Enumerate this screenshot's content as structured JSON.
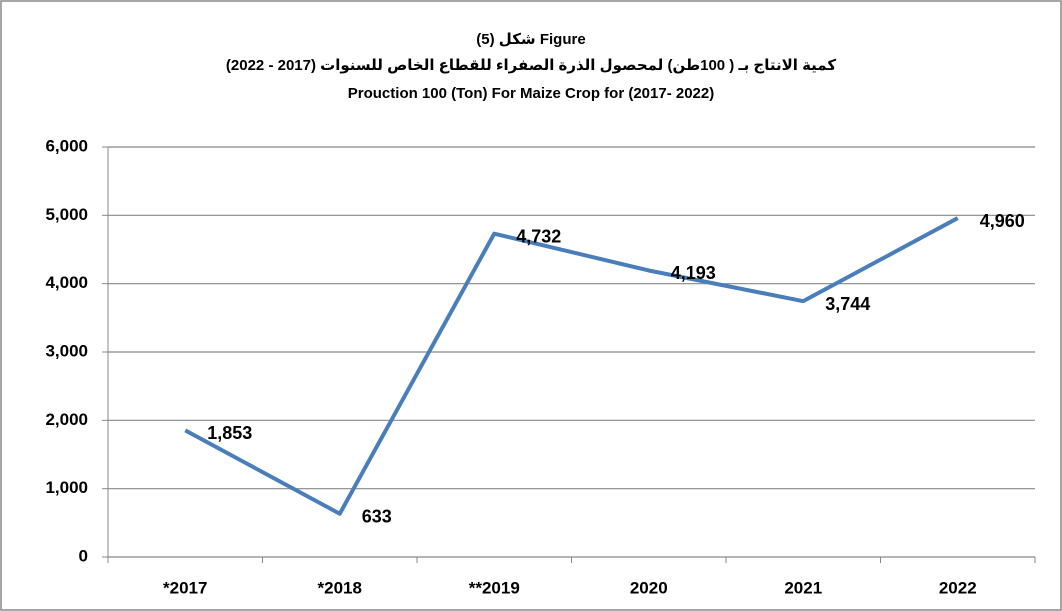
{
  "chart_data": {
    "type": "line",
    "title": [
      "شكل (5) Figure",
      "كمية الانتاج بـ ( 100طن) لمحصول الذرة الصفراء للقطاع الخاص للسنوات (2017 - 2022)",
      "Prouction 100 (Ton) For  Maize Crop for (2017- 2022)"
    ],
    "categories": [
      "*2017",
      "*2018",
      "**2019",
      "2020",
      "2021",
      "2022"
    ],
    "values": [
      1853,
      633,
      4732,
      4193,
      3744,
      4960
    ],
    "value_labels": [
      "1,853",
      "633",
      "4,732",
      "4,193",
      "3,744",
      "4,960"
    ],
    "color": "#4a7ebb",
    "ylim": [
      0,
      6000
    ],
    "yticks": [
      0,
      {
        "value": 1000,
        "label": "1,000"
      },
      {
        "value": 2000,
        "label": "2,000"
      },
      {
        "value": 3000,
        "label": "3,000"
      },
      {
        "value": 4000,
        "label": "4,000"
      },
      {
        "value": 5000,
        "label": "5,000"
      },
      {
        "value": 6000,
        "label": "6,000"
      }
    ],
    "grid": true
  }
}
